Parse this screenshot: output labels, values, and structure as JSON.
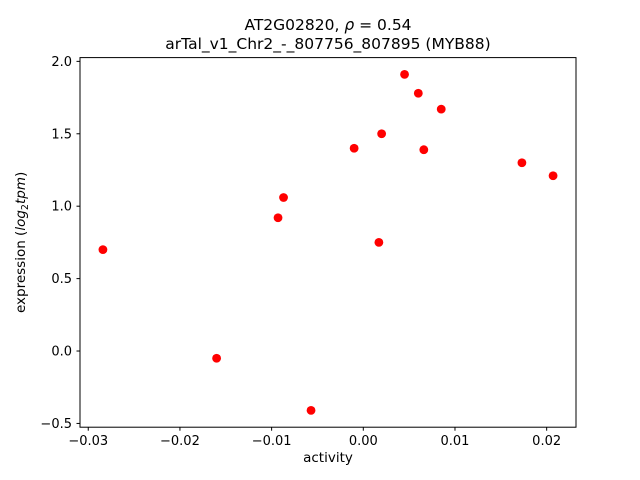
{
  "figure": {
    "background": "#ffffff",
    "frame_color": "#000000"
  },
  "chart_data": {
    "type": "scatter",
    "title": "AT2G02820, ρ = 0.54",
    "title_parts": {
      "prefix": "AT2G02820, ",
      "rho": "ρ",
      "suffix": " = 0.54"
    },
    "subtitle": "arTal_v1_Chr2_-_807756_807895 (MYB88)",
    "xlabel": "activity",
    "ylabel": "expression (log2tpm)",
    "ylabel_parts": {
      "prefix": "expression (",
      "func": "log",
      "sub": "2",
      "var": "tpm",
      "suffix": ")"
    },
    "xlim": [
      -0.0309,
      0.0232
    ],
    "ylim": [
      -0.526,
      2.026
    ],
    "xticks": [
      -0.03,
      -0.02,
      -0.01,
      0.0,
      0.01,
      0.02
    ],
    "xtick_labels": [
      "−0.03",
      "−0.02",
      "−0.01",
      "0.00",
      "0.01",
      "0.02"
    ],
    "yticks": [
      -0.5,
      0.0,
      0.5,
      1.0,
      1.5,
      2.0
    ],
    "ytick_labels": [
      "−0.5",
      "0.0",
      "0.5",
      "1.0",
      "1.5",
      "2.0"
    ],
    "grid": false,
    "marker": {
      "shape": "circle",
      "color": "#ff0000",
      "radius_px": 4.4
    },
    "points": [
      [
        -0.0284,
        0.7
      ],
      [
        -0.016,
        -0.05
      ],
      [
        -0.0093,
        0.92
      ],
      [
        -0.0087,
        1.06
      ],
      [
        -0.0057,
        -0.41
      ],
      [
        -0.001,
        1.4
      ],
      [
        0.0017,
        0.75
      ],
      [
        0.002,
        1.5
      ],
      [
        0.0045,
        1.91
      ],
      [
        0.006,
        1.78
      ],
      [
        0.0066,
        1.39
      ],
      [
        0.0085,
        1.67
      ],
      [
        0.0173,
        1.3
      ],
      [
        0.0207,
        1.21
      ]
    ]
  }
}
